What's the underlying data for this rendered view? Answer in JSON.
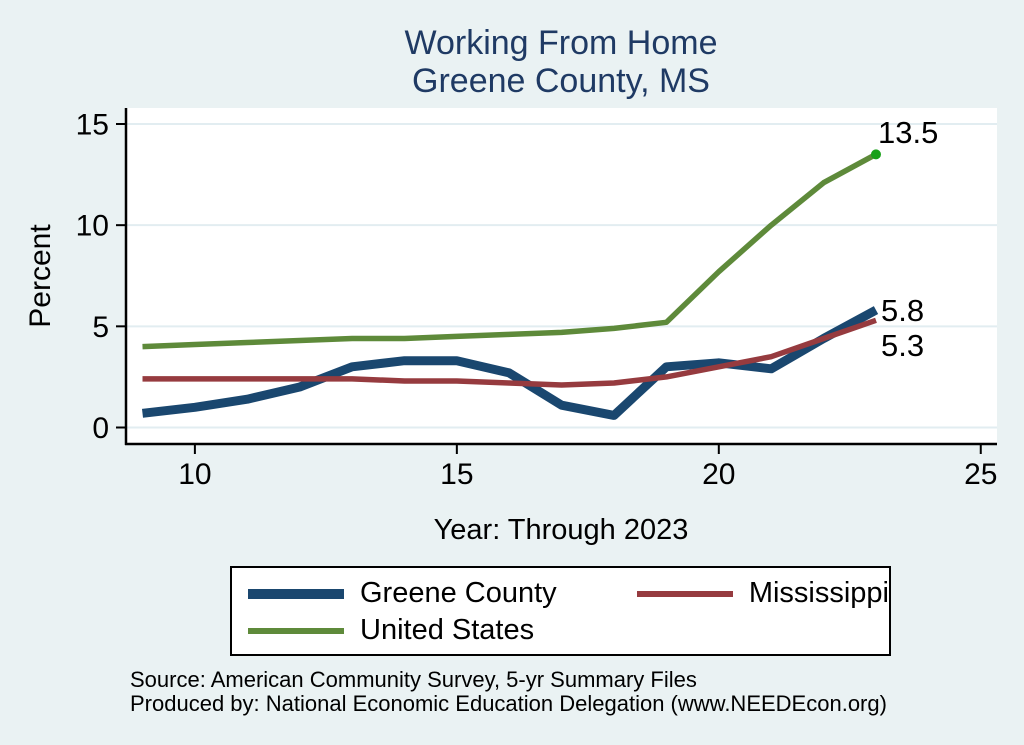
{
  "page": {
    "background": "#eaf2f3",
    "plot_background": "#ffffff"
  },
  "title": {
    "line1": "Working From Home",
    "line2": "Greene County, MS",
    "color": "#1f3a64"
  },
  "axes": {
    "y_label": "Percent",
    "x_label": "Year: Through 2023",
    "grid_color": "#e2edf1",
    "y_ticks": [
      {
        "value": 0,
        "label": "0"
      },
      {
        "value": 5,
        "label": "5"
      },
      {
        "value": 10,
        "label": "10"
      },
      {
        "value": 15,
        "label": "15"
      }
    ],
    "x_ticks": [
      {
        "value": 10,
        "label": "10"
      },
      {
        "value": 15,
        "label": "15"
      },
      {
        "value": 20,
        "label": "20"
      },
      {
        "value": 25,
        "label": "25"
      }
    ]
  },
  "chart_data": {
    "type": "line",
    "title": "Working From Home",
    "subtitle": "Greene County, MS",
    "xlabel": "Year: Through 2023",
    "ylabel": "Percent",
    "xlim": [
      8.666,
      25.31
    ],
    "ylim": [
      0,
      15
    ],
    "grid": true,
    "legend_position": "bottom",
    "x": [
      9,
      10,
      11,
      12,
      13,
      14,
      15,
      16,
      17,
      18,
      19,
      20,
      21,
      22,
      23
    ],
    "series": [
      {
        "name": "Greene County",
        "color": "#1a476f",
        "line_width": 9,
        "values": [
          0.7,
          1.0,
          1.4,
          2.0,
          3.0,
          3.3,
          3.3,
          2.7,
          1.1,
          0.6,
          3.0,
          3.2,
          2.9,
          4.4,
          5.8
        ]
      },
      {
        "name": "Mississippi",
        "color": "#963b3f",
        "line_width": 5.5,
        "values": [
          2.4,
          2.4,
          2.4,
          2.4,
          2.4,
          2.3,
          2.3,
          2.2,
          2.1,
          2.2,
          2.5,
          3.0,
          3.5,
          4.4,
          5.3
        ]
      },
      {
        "name": "United States",
        "color": "#5e8a3a",
        "line_width": 5.5,
        "end_marker": true,
        "end_marker_color": "#17a017",
        "values": [
          4.0,
          4.1,
          4.2,
          4.3,
          4.4,
          4.4,
          4.5,
          4.6,
          4.7,
          4.9,
          5.2,
          7.7,
          10.0,
          12.1,
          13.5
        ]
      }
    ],
    "end_labels": [
      {
        "text": "13.5",
        "series": "United States"
      },
      {
        "text": "5.8",
        "series": "Greene County"
      },
      {
        "text": "5.3",
        "series": "Mississippi"
      }
    ]
  },
  "source": {
    "line1": "Source: American Community Survey, 5-yr Summary Files",
    "line2": "Produced by: National Economic Education Delegation (www.NEEDEcon.org)"
  }
}
